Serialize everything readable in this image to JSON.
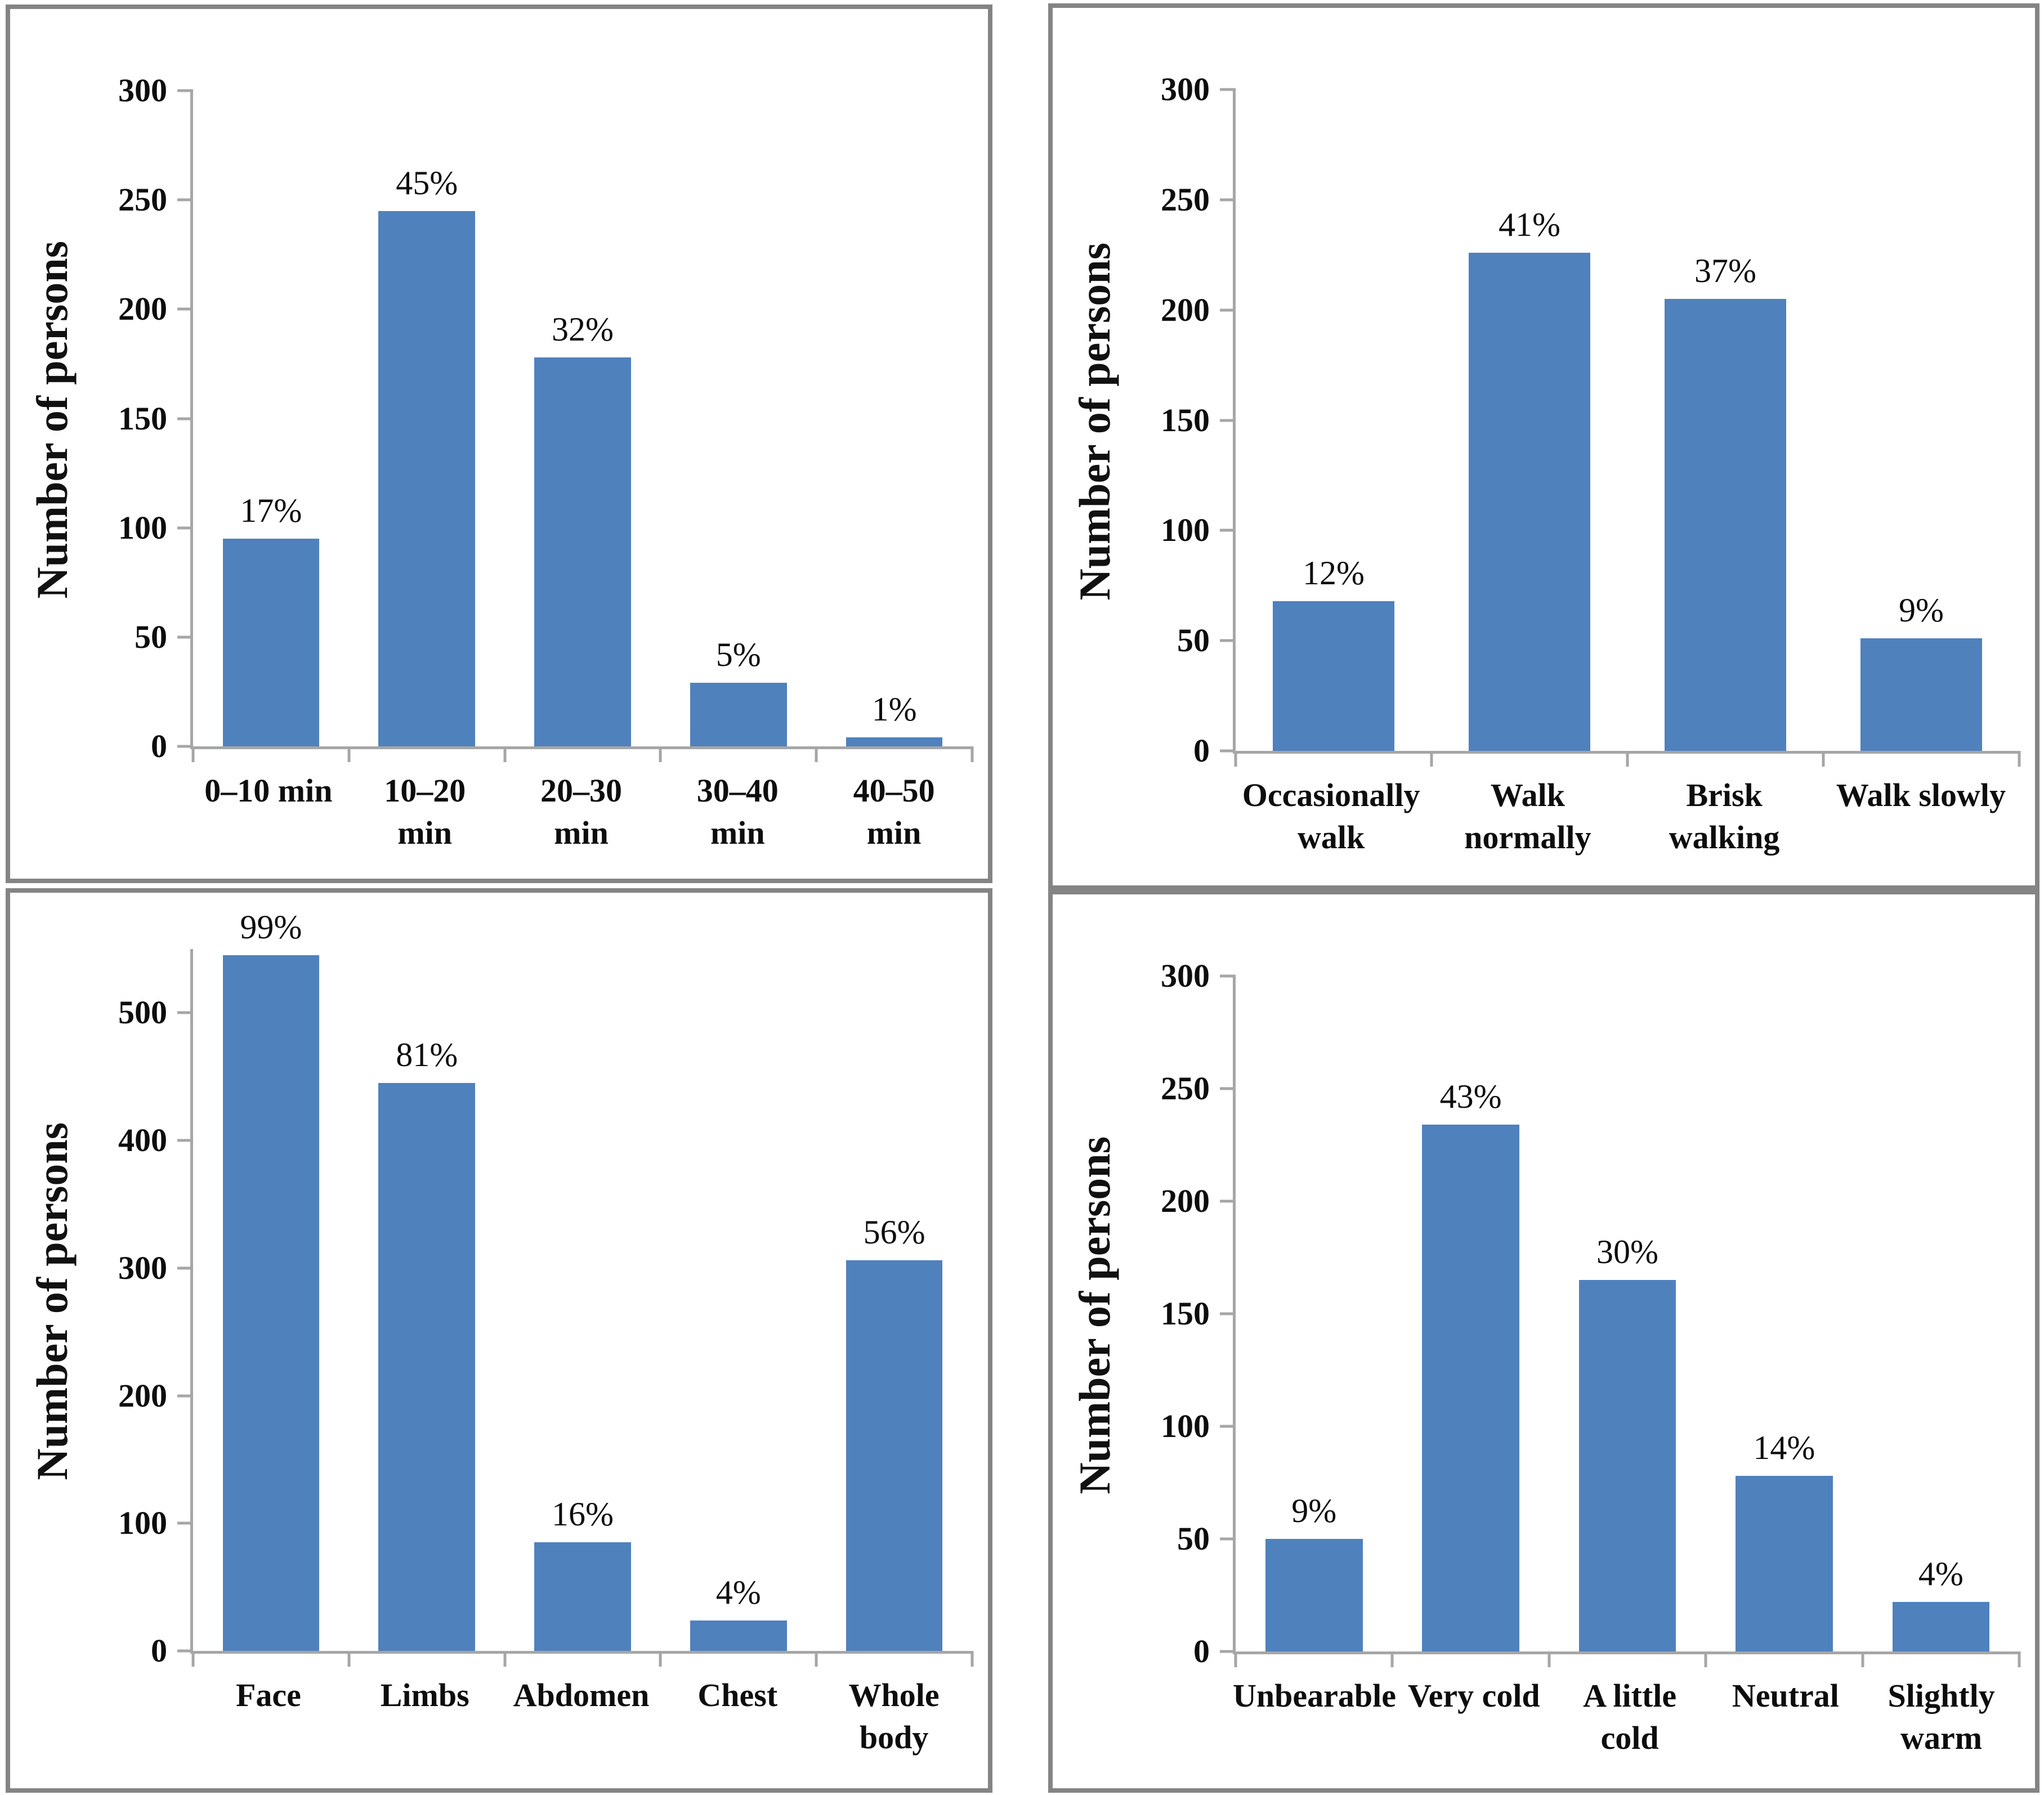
{
  "style": {
    "bar_color": "#4f81bd",
    "axis_color": "#a6a6a6",
    "panel_border_color": "#848484",
    "text_color": "#111111"
  },
  "chart_data": [
    {
      "type": "bar",
      "panel": "top-left",
      "ylabel": "Number of persons",
      "categories": [
        [
          "0–10 min"
        ],
        [
          "10–20",
          "min"
        ],
        [
          "20–30",
          "min"
        ],
        [
          "30–40",
          "min"
        ],
        [
          "40–50",
          "min"
        ]
      ],
      "values": [
        95,
        245,
        178,
        29,
        4
      ],
      "labels": [
        "17%",
        "45%",
        "32%",
        "5%",
        "1%"
      ],
      "ylim": [
        0,
        300
      ],
      "yticks": [
        0,
        50,
        100,
        150,
        200,
        250,
        300
      ],
      "grid": false,
      "legend": false
    },
    {
      "type": "bar",
      "panel": "top-right",
      "ylabel": "Number of persons",
      "categories": [
        [
          "Occasionally",
          "walk"
        ],
        [
          "Walk",
          "normally"
        ],
        [
          "Brisk",
          "walking"
        ],
        [
          "Walk slowly"
        ]
      ],
      "values": [
        68,
        226,
        205,
        51
      ],
      "labels": [
        "12%",
        "41%",
        "37%",
        "9%"
      ],
      "ylim": [
        0,
        300
      ],
      "yticks": [
        0,
        50,
        100,
        150,
        200,
        250,
        300
      ],
      "grid": false,
      "legend": false
    },
    {
      "type": "bar",
      "panel": "bottom-left",
      "ylabel": "Number of persons",
      "categories": [
        [
          "Face"
        ],
        [
          "Limbs"
        ],
        [
          "Abdomen"
        ],
        [
          "Chest"
        ],
        [
          "Whole",
          "body"
        ]
      ],
      "values": [
        545,
        445,
        85,
        24,
        306
      ],
      "labels": [
        "99%",
        "81%",
        "16%",
        "4%",
        "56%"
      ],
      "ylim": [
        0,
        550
      ],
      "yticks": [
        0,
        100,
        200,
        300,
        400,
        500
      ],
      "grid": false,
      "legend": false
    },
    {
      "type": "bar",
      "panel": "bottom-right",
      "ylabel": "Number of persons",
      "categories": [
        [
          "Unbearable"
        ],
        [
          "Very cold"
        ],
        [
          "A little",
          "cold"
        ],
        [
          "Neutral"
        ],
        [
          "Slightly",
          "warm"
        ]
      ],
      "values": [
        50,
        234,
        165,
        78,
        22
      ],
      "labels": [
        "9%",
        "43%",
        "30%",
        "14%",
        "4%"
      ],
      "ylim": [
        0,
        300
      ],
      "yticks": [
        0,
        50,
        100,
        150,
        200,
        250,
        300
      ],
      "grid": false,
      "legend": false
    }
  ]
}
